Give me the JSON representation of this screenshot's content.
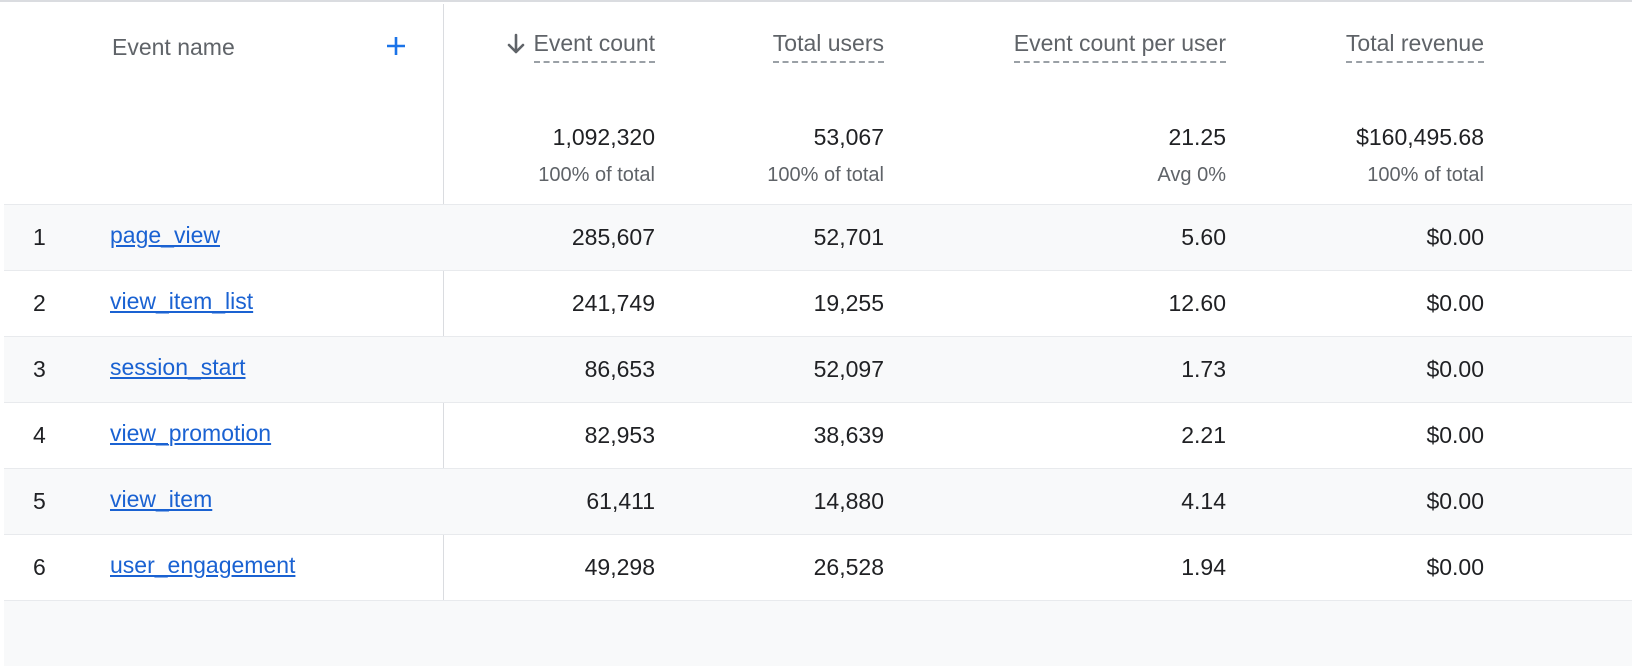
{
  "header": {
    "event_name": "Event name",
    "columns": [
      {
        "label": "Event count",
        "sorted": "descending"
      },
      {
        "label": "Total users"
      },
      {
        "label": "Event count per user"
      },
      {
        "label": "Total revenue"
      }
    ]
  },
  "totals": [
    {
      "value": "1,092,320",
      "sub": "100% of total"
    },
    {
      "value": "53,067",
      "sub": "100% of total"
    },
    {
      "value": "21.25",
      "sub": "Avg 0%"
    },
    {
      "value": "$160,495.68",
      "sub": "100% of total"
    }
  ],
  "rows": [
    {
      "index": "1",
      "event": "page_view",
      "event_count": "285,607",
      "total_users": "52,701",
      "per_user": "5.60",
      "revenue": "$0.00"
    },
    {
      "index": "2",
      "event": "view_item_list",
      "event_count": "241,749",
      "total_users": "19,255",
      "per_user": "12.60",
      "revenue": "$0.00"
    },
    {
      "index": "3",
      "event": "session_start",
      "event_count": "86,653",
      "total_users": "52,097",
      "per_user": "1.73",
      "revenue": "$0.00"
    },
    {
      "index": "4",
      "event": "view_promotion",
      "event_count": "82,953",
      "total_users": "38,639",
      "per_user": "2.21",
      "revenue": "$0.00"
    },
    {
      "index": "5",
      "event": "view_item",
      "event_count": "61,411",
      "total_users": "14,880",
      "per_user": "4.14",
      "revenue": "$0.00"
    },
    {
      "index": "6",
      "event": "user_engagement",
      "event_count": "49,298",
      "total_users": "26,528",
      "per_user": "1.94",
      "revenue": "$0.00"
    }
  ],
  "icons": {
    "add": "plus-icon",
    "sort": "arrow-down-icon"
  },
  "colors": {
    "link": "#1a62d2",
    "accent": "#1a73e8"
  }
}
